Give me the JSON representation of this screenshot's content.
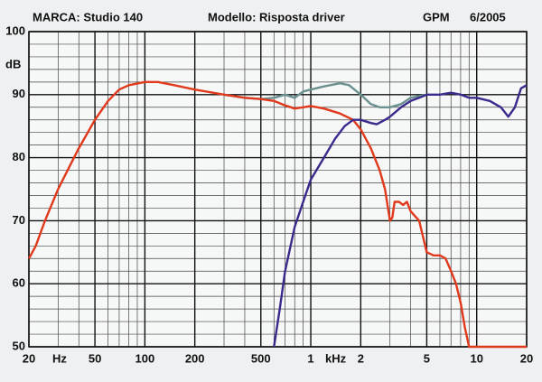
{
  "chart_data": {
    "type": "line",
    "title": "MARCA: Studio 140",
    "subtitle": "Modello: Risposta driver",
    "annotations": [
      "GPM",
      "6/2005"
    ],
    "ylabel": "dB",
    "xlabel": "Hz",
    "xlabel2": "kHz",
    "xscale": "log",
    "xlim": [
      20,
      20000
    ],
    "ylim": [
      50,
      100
    ],
    "xticks": [
      20,
      50,
      100,
      200,
      500,
      {
        "value": 1000,
        "label": "1"
      },
      {
        "value": 2000,
        "label": "2"
      },
      {
        "value": 5000,
        "label": "5"
      },
      {
        "value": 10000,
        "label": "10"
      },
      {
        "value": 20000,
        "label": "20"
      }
    ],
    "yticks": [
      50,
      60,
      70,
      80,
      90,
      100
    ],
    "minor_xticks": [
      30,
      40,
      60,
      70,
      80,
      90,
      300,
      400,
      600,
      700,
      800,
      900,
      3000,
      4000,
      6000,
      7000,
      8000,
      9000
    ],
    "minor_yticks": [
      52,
      54,
      56,
      58,
      62,
      64,
      66,
      68,
      72,
      74,
      76,
      78,
      82,
      84,
      86,
      88,
      92,
      94,
      96,
      98
    ],
    "grid": true,
    "series": [
      {
        "color": "#e0391c",
        "x": [
          20,
          22,
          25,
          30,
          35,
          40,
          50,
          60,
          70,
          80,
          100,
          120,
          150,
          200,
          300,
          400,
          500,
          600,
          700,
          800,
          900,
          1000,
          1200,
          1500,
          1800,
          2000,
          2300,
          2600,
          2800,
          3000,
          3100,
          3200,
          3400,
          3600,
          3800,
          4000,
          4500,
          5000,
          5500,
          6000,
          6500,
          7000,
          7500,
          8000,
          8500,
          9000,
          20000
        ],
        "values": [
          64,
          66,
          70,
          75,
          78.5,
          81.5,
          86,
          89,
          90.8,
          91.5,
          92,
          92,
          91.5,
          90.8,
          90,
          89.5,
          89.3,
          89,
          88.3,
          87.8,
          88,
          88.2,
          87.8,
          87,
          86,
          84.5,
          81.5,
          78,
          75,
          70,
          70.5,
          73,
          73,
          72.5,
          73,
          71.5,
          70,
          65,
          64.5,
          64.5,
          64,
          62,
          60,
          57,
          53,
          50,
          50
        ]
      },
      {
        "color": "#3b2a8c",
        "x": [
          600,
          650,
          700,
          800,
          900,
          1000,
          1200,
          1400,
          1600,
          1800,
          2000,
          2300,
          2500,
          2800,
          3000,
          3500,
          4000,
          4500,
          5000,
          6000,
          7000,
          8000,
          9000,
          10000,
          12000,
          14000,
          15500,
          17000,
          18500,
          20000
        ],
        "values": [
          50,
          56,
          62,
          69,
          73,
          76.5,
          80,
          83,
          85,
          86,
          86,
          85.5,
          85.3,
          86,
          86.5,
          88,
          89,
          89.5,
          90,
          90,
          90.3,
          90,
          89.5,
          89.5,
          89,
          88,
          86.5,
          88,
          91,
          91.5
        ]
      },
      {
        "color": "#6a9090",
        "x": [
          300,
          400,
          500,
          600,
          700,
          800,
          900,
          1000,
          1200,
          1500,
          1700,
          2000,
          2300,
          2600,
          3000,
          3500,
          4000,
          5000
        ],
        "values": [
          90,
          89.5,
          89.3,
          89.5,
          90,
          89.5,
          90.5,
          90.8,
          91.3,
          91.8,
          91.5,
          90,
          88.5,
          88,
          88,
          88.5,
          89.5,
          90
        ]
      }
    ]
  }
}
